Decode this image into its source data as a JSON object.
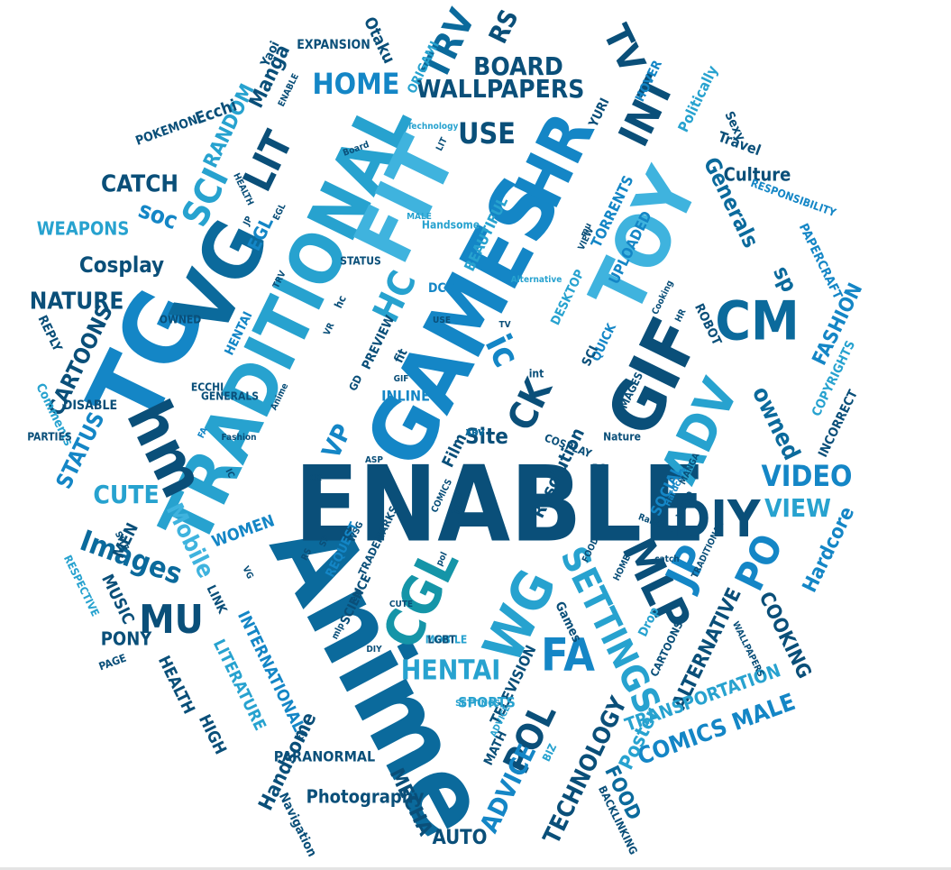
{
  "palette": [
    "#0b6a9c",
    "#1486c6",
    "#27a2cf",
    "#0a4f79",
    "#3fb3de",
    "#1595a8"
  ],
  "words": [
    {
      "text": "Anime"
    },
    {
      "text": "ENABLE"
    },
    {
      "text": "GAMES"
    },
    {
      "text": "TRADITIONAL"
    },
    {
      "text": "TG"
    },
    {
      "text": "VG"
    },
    {
      "text": "FIT"
    },
    {
      "text": "TOY"
    },
    {
      "text": "GIF"
    },
    {
      "text": "HR"
    },
    {
      "text": "CM"
    },
    {
      "text": "ADV"
    },
    {
      "text": "DIY"
    },
    {
      "text": "WG"
    },
    {
      "text": "CGL"
    },
    {
      "text": "hm"
    },
    {
      "text": "MLP"
    },
    {
      "text": "JP"
    },
    {
      "text": "FA"
    },
    {
      "text": "PO"
    },
    {
      "text": "SETTINGS"
    },
    {
      "text": "POL"
    },
    {
      "text": "INT"
    },
    {
      "text": "TV"
    },
    {
      "text": "LIT"
    },
    {
      "text": "SCI"
    },
    {
      "text": "HC"
    },
    {
      "text": "CK"
    },
    {
      "text": "ic"
    },
    {
      "text": "MU"
    },
    {
      "text": "HOME"
    },
    {
      "text": "WALLPAPERS"
    },
    {
      "text": "TRV"
    },
    {
      "text": "RS"
    },
    {
      "text": "BOARD"
    },
    {
      "text": "Generals"
    },
    {
      "text": "USE"
    },
    {
      "text": "VIDEO"
    },
    {
      "text": "VIEW"
    },
    {
      "text": "Hardcore"
    },
    {
      "text": "HENTAI"
    },
    {
      "text": "Mobile"
    },
    {
      "text": "Images"
    },
    {
      "text": "Cosplay"
    },
    {
      "text": "CATCH"
    },
    {
      "text": "RANDOM"
    },
    {
      "text": "Manga"
    },
    {
      "text": "Ecchi"
    },
    {
      "text": "soc"
    },
    {
      "text": "owned"
    },
    {
      "text": "sp"
    },
    {
      "text": "Culture"
    },
    {
      "text": "FASHION"
    },
    {
      "text": "COOKING"
    },
    {
      "text": "ALTERNATIVE"
    },
    {
      "text": "COMICS MALE"
    },
    {
      "text": "TRANSPORTATION"
    },
    {
      "text": "TECHNOLOGY"
    },
    {
      "text": "FOOD"
    },
    {
      "text": "Poster"
    },
    {
      "text": "ADVICE"
    },
    {
      "text": "AUTO"
    },
    {
      "text": "MECHA"
    },
    {
      "text": "Photography"
    },
    {
      "text": "Handsome"
    },
    {
      "text": "PARANORMAL"
    },
    {
      "text": "LITERATURE"
    },
    {
      "text": "INTERNATIONAL"
    },
    {
      "text": "HIGH"
    },
    {
      "text": "HEALTH"
    },
    {
      "text": "PONY"
    },
    {
      "text": "MUSIC"
    },
    {
      "text": "MEN"
    },
    {
      "text": "WOMEN"
    },
    {
      "text": "CUTE"
    },
    {
      "text": "STATUS"
    },
    {
      "text": "CARTOONS"
    },
    {
      "text": "NATURE"
    },
    {
      "text": "WEAPONS"
    },
    {
      "text": "VP"
    },
    {
      "text": "Site"
    },
    {
      "text": "Resolution"
    },
    {
      "text": "SOCIAL"
    },
    {
      "text": "TELEVISION"
    },
    {
      "text": "SPORTS"
    },
    {
      "text": "Film"
    },
    {
      "text": "REQUEST"
    },
    {
      "text": "SCIENCE"
    },
    {
      "text": "TRADEMARKS"
    },
    {
      "text": "EGL"
    },
    {
      "text": "TORRENTS"
    },
    {
      "text": "UPLOADED"
    },
    {
      "text": "BEAUTIFUL"
    },
    {
      "text": "DESKTOP"
    },
    {
      "text": "QUICK"
    },
    {
      "text": "PREVIEW"
    },
    {
      "text": "INLINE"
    },
    {
      "text": "DCG"
    },
    {
      "text": "PAPERCRAFT"
    },
    {
      "text": "RESPONSIBILITY"
    },
    {
      "text": "Travel"
    },
    {
      "text": "Sexy"
    },
    {
      "text": "Politically"
    },
    {
      "text": "HOVER"
    },
    {
      "text": "YURI"
    },
    {
      "text": "ORIGAMI"
    },
    {
      "text": "Otaku"
    },
    {
      "text": "EXPANSION"
    },
    {
      "text": "Yaoi"
    },
    {
      "text": "POKEMON"
    },
    {
      "text": "COPYRIGHTS"
    },
    {
      "text": "INCORRECT"
    },
    {
      "text": "ROBOT"
    },
    {
      "text": "DISABLE"
    },
    {
      "text": "Comments"
    },
    {
      "text": "PARTIES"
    },
    {
      "text": "REPLY"
    },
    {
      "text": "RESPECTIVE"
    },
    {
      "text": "PAGE"
    },
    {
      "text": "LINK"
    },
    {
      "text": "Navigation"
    },
    {
      "text": "BACKLINKING"
    },
    {
      "text": "BIZ"
    },
    {
      "text": "MATH"
    },
    {
      "text": "MOBILE"
    },
    {
      "text": "Drop"
    },
    {
      "text": "Games"
    },
    {
      "text": "CARTOONS"
    },
    {
      "text": "WALLPAPERS"
    },
    {
      "text": "Random"
    },
    {
      "text": "Nature"
    },
    {
      "text": "COSPLAY"
    },
    {
      "text": "IMAGES"
    },
    {
      "text": "Technology"
    },
    {
      "text": "Board"
    },
    {
      "text": "HEALTH"
    },
    {
      "text": "STATUS"
    },
    {
      "text": "OWNED"
    },
    {
      "text": "HENTAI"
    },
    {
      "text": "GENERALS"
    },
    {
      "text": "ECCHI"
    },
    {
      "text": "Fashion"
    },
    {
      "text": "Hardcore"
    },
    {
      "text": "Handsome"
    },
    {
      "text": "MALE"
    },
    {
      "text": "Alternative"
    },
    {
      "text": "Cooking"
    },
    {
      "text": "SETTINGS"
    },
    {
      "text": "ADVICE"
    },
    {
      "text": "COMICS"
    },
    {
      "text": "VIDEO"
    },
    {
      "text": "FOOD"
    },
    {
      "text": "MANGA"
    },
    {
      "text": "HOME"
    },
    {
      "text": "catch"
    },
    {
      "text": "pol"
    },
    {
      "text": "LGBT"
    },
    {
      "text": "TOY"
    },
    {
      "text": "PO"
    },
    {
      "text": "SCI"
    },
    {
      "text": "int"
    },
    {
      "text": "fit"
    },
    {
      "text": "hc"
    },
    {
      "text": "GIF"
    },
    {
      "text": "GD"
    },
    {
      "text": "ASP"
    },
    {
      "text": "CK"
    },
    {
      "text": "SP"
    },
    {
      "text": "RS"
    },
    {
      "text": "IC"
    },
    {
      "text": "VG"
    },
    {
      "text": "SITE"
    },
    {
      "text": "WSG"
    },
    {
      "text": "CUTE"
    },
    {
      "text": "egl"
    },
    {
      "text": "tg"
    },
    {
      "text": "mlp"
    },
    {
      "text": "DIY"
    },
    {
      "text": "FA"
    },
    {
      "text": "VR"
    },
    {
      "text": "TV"
    },
    {
      "text": "mu"
    },
    {
      "text": "HR"
    },
    {
      "text": "JP"
    },
    {
      "text": "EGL"
    },
    {
      "text": "LIT"
    },
    {
      "text": "TRV"
    },
    {
      "text": "VIEW"
    },
    {
      "text": "USE"
    },
    {
      "text": "ENABLE"
    },
    {
      "text": "Anime"
    },
    {
      "text": "TRADITIONAL"
    },
    {
      "text": "TRV"
    },
    {
      "text": "ADV"
    }
  ]
}
